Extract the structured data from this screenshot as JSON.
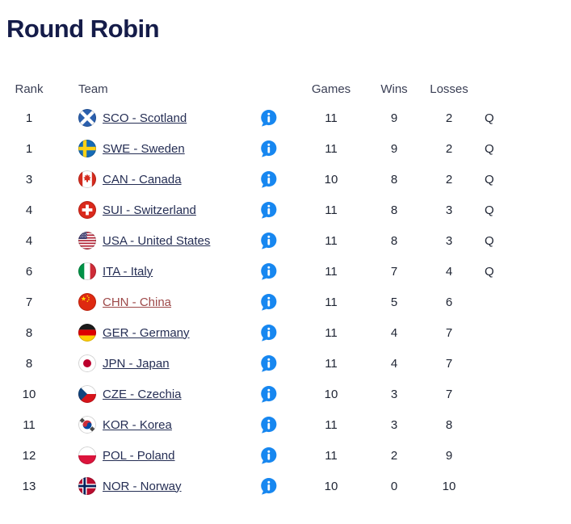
{
  "page": {
    "title": "Round Robin"
  },
  "colors": {
    "title": "#151c49",
    "header_text": "#3a3f55",
    "body_text": "#1e2433",
    "team_link": "#252e54",
    "team_link_visited": "#9d4848",
    "info_icon": "#1787f0"
  },
  "icons": {
    "info": "info-speech-bubble-icon",
    "flags": [
      "sco-flag-icon",
      "swe-flag-icon",
      "can-flag-icon",
      "sui-flag-icon",
      "usa-flag-icon",
      "ita-flag-icon",
      "chn-flag-icon",
      "ger-flag-icon",
      "jpn-flag-icon",
      "cze-flag-icon",
      "kor-flag-icon",
      "pol-flag-icon",
      "nor-flag-icon"
    ]
  },
  "table": {
    "headers": {
      "rank": "Rank",
      "team": "Team",
      "games": "Games",
      "wins": "Wins",
      "losses": "Losses"
    },
    "rows": [
      {
        "rank": "1",
        "code": "SCO",
        "team": "SCO - Scotland",
        "games": "11",
        "wins": "9",
        "losses": "2",
        "qualified": "Q",
        "link_variant": "default"
      },
      {
        "rank": "1",
        "code": "SWE",
        "team": "SWE - Sweden",
        "games": "11",
        "wins": "9",
        "losses": "2",
        "qualified": "Q",
        "link_variant": "default"
      },
      {
        "rank": "3",
        "code": "CAN",
        "team": "CAN - Canada",
        "games": "10",
        "wins": "8",
        "losses": "2",
        "qualified": "Q",
        "link_variant": "default"
      },
      {
        "rank": "4",
        "code": "SUI",
        "team": "SUI - Switzerland",
        "games": "11",
        "wins": "8",
        "losses": "3",
        "qualified": "Q",
        "link_variant": "default"
      },
      {
        "rank": "4",
        "code": "USA",
        "team": "USA - United States",
        "games": "11",
        "wins": "8",
        "losses": "3",
        "qualified": "Q",
        "link_variant": "default"
      },
      {
        "rank": "6",
        "code": "ITA",
        "team": "ITA - Italy",
        "games": "11",
        "wins": "7",
        "losses": "4",
        "qualified": "Q",
        "link_variant": "default"
      },
      {
        "rank": "7",
        "code": "CHN",
        "team": "CHN - China",
        "games": "11",
        "wins": "5",
        "losses": "6",
        "qualified": "",
        "link_variant": "visited"
      },
      {
        "rank": "8",
        "code": "GER",
        "team": "GER - Germany",
        "games": "11",
        "wins": "4",
        "losses": "7",
        "qualified": "",
        "link_variant": "default"
      },
      {
        "rank": "8",
        "code": "JPN",
        "team": "JPN - Japan",
        "games": "11",
        "wins": "4",
        "losses": "7",
        "qualified": "",
        "link_variant": "default"
      },
      {
        "rank": "10",
        "code": "CZE",
        "team": "CZE - Czechia",
        "games": "10",
        "wins": "3",
        "losses": "7",
        "qualified": "",
        "link_variant": "default"
      },
      {
        "rank": "11",
        "code": "KOR",
        "team": "KOR - Korea",
        "games": "11",
        "wins": "3",
        "losses": "8",
        "qualified": "",
        "link_variant": "default"
      },
      {
        "rank": "12",
        "code": "POL",
        "team": "POL - Poland",
        "games": "11",
        "wins": "2",
        "losses": "9",
        "qualified": "",
        "link_variant": "default"
      },
      {
        "rank": "13",
        "code": "NOR",
        "team": "NOR - Norway",
        "games": "10",
        "wins": "0",
        "losses": "10",
        "qualified": "",
        "link_variant": "default"
      }
    ]
  }
}
